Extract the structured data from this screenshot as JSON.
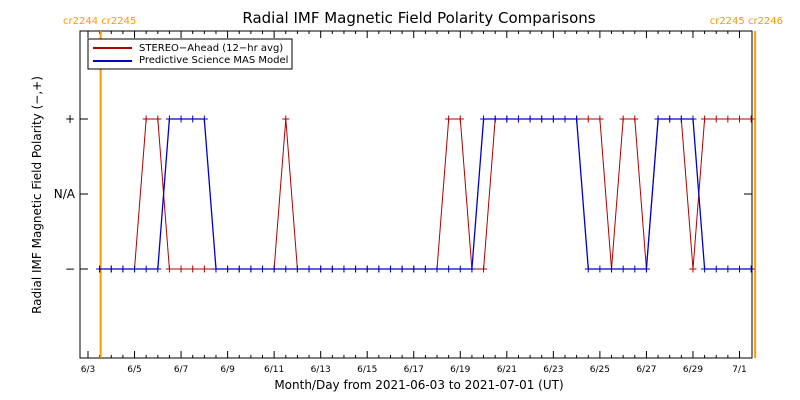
{
  "colors": {
    "stereo": "#b00000",
    "mas": "#0000cc",
    "cr_line": "#ff9900",
    "axis": "#000000"
  },
  "chart_data": {
    "type": "line",
    "title": "Radial IMF Magnetic Field Polarity Comparisons",
    "xlabel": "Month/Day from 2021-06-03 to 2021-07-01 (UT)",
    "ylabel": "Radial IMF Magnetic Field Polarity (−,+)",
    "xlim": [
      "2021-06-03",
      "2021-07-01"
    ],
    "ylim": [
      -2,
      2
    ],
    "x_tick_labels": [
      "6/3",
      "6/5",
      "6/7",
      "6/9",
      "6/11",
      "6/13",
      "6/15",
      "6/17",
      "6/19",
      "6/21",
      "6/23",
      "6/25",
      "6/27",
      "6/29",
      "7/1"
    ],
    "y_ticks": [
      {
        "value": 1,
        "label": "+"
      },
      {
        "value": 0,
        "label": "N/A"
      },
      {
        "value": -1,
        "label": "−"
      }
    ],
    "legend_placement": "top-left",
    "carrington_markers": [
      {
        "x": "2021-06-03 12:00",
        "label": "cr2244 cr2245",
        "placement": "top-left"
      },
      {
        "x": "2021-07-01 12:00",
        "label": "cr2245 cr2246",
        "placement": "top-right"
      }
    ],
    "series": [
      {
        "name": "STEREO−Ahead (12−hr avg)",
        "color": "#b00000",
        "marker": "plus",
        "points": [
          [
            "2021-06-03 12:00",
            -1
          ],
          [
            "2021-06-04 00:00",
            -1
          ],
          [
            "2021-06-04 12:00",
            -1
          ],
          [
            "2021-06-05 00:00",
            -1
          ],
          [
            "2021-06-05 12:00",
            1
          ],
          [
            "2021-06-06 00:00",
            1
          ],
          [
            "2021-06-06 12:00",
            -1
          ],
          [
            "2021-06-07 00:00",
            -1
          ],
          [
            "2021-06-07 12:00",
            -1
          ],
          [
            "2021-06-08 00:00",
            -1
          ],
          [
            "2021-06-08 12:00",
            -1
          ],
          [
            "2021-06-09 00:00",
            -1
          ],
          [
            "2021-06-09 12:00",
            -1
          ],
          [
            "2021-06-10 00:00",
            -1
          ],
          [
            "2021-06-10 12:00",
            -1
          ],
          [
            "2021-06-11 00:00",
            -1
          ],
          [
            "2021-06-11 12:00",
            1
          ],
          [
            "2021-06-12 00:00",
            -1
          ],
          [
            "2021-06-12 12:00",
            -1
          ],
          [
            "2021-06-13 00:00",
            -1
          ],
          [
            "2021-06-13 12:00",
            -1
          ],
          [
            "2021-06-14 00:00",
            -1
          ],
          [
            "2021-06-14 12:00",
            -1
          ],
          [
            "2021-06-15 00:00",
            -1
          ],
          [
            "2021-06-15 12:00",
            -1
          ],
          [
            "2021-06-16 00:00",
            -1
          ],
          [
            "2021-06-16 12:00",
            -1
          ],
          [
            "2021-06-17 00:00",
            -1
          ],
          [
            "2021-06-17 12:00",
            -1
          ],
          [
            "2021-06-18 00:00",
            -1
          ],
          [
            "2021-06-18 12:00",
            1
          ],
          [
            "2021-06-19 00:00",
            1
          ],
          [
            "2021-06-19 12:00",
            -1
          ],
          [
            "2021-06-20 00:00",
            -1
          ],
          [
            "2021-06-20 12:00",
            1
          ],
          [
            "2021-06-21 00:00",
            1
          ],
          [
            "2021-06-21 12:00",
            1
          ],
          [
            "2021-06-22 00:00",
            1
          ],
          [
            "2021-06-22 12:00",
            1
          ],
          [
            "2021-06-23 00:00",
            1
          ],
          [
            "2021-06-23 12:00",
            1
          ],
          [
            "2021-06-24 00:00",
            1
          ],
          [
            "2021-06-24 12:00",
            1
          ],
          [
            "2021-06-25 00:00",
            1
          ],
          [
            "2021-06-25 12:00",
            -1
          ],
          [
            "2021-06-26 00:00",
            1
          ],
          [
            "2021-06-26 12:00",
            1
          ],
          [
            "2021-06-27 00:00",
            -1
          ],
          [
            "2021-06-27 12:00",
            1
          ],
          [
            "2021-06-28 00:00",
            1
          ],
          [
            "2021-06-28 12:00",
            1
          ],
          [
            "2021-06-29 00:00",
            -1
          ],
          [
            "2021-06-29 12:00",
            1
          ],
          [
            "2021-06-30 00:00",
            1
          ],
          [
            "2021-06-30 12:00",
            1
          ],
          [
            "2021-07-01 00:00",
            1
          ],
          [
            "2021-07-01 12:00",
            1
          ]
        ]
      },
      {
        "name": "Predictive Science MAS Model",
        "color": "#0000cc",
        "marker": "plus",
        "points": [
          [
            "2021-06-03 12:00",
            -1
          ],
          [
            "2021-06-04 00:00",
            -1
          ],
          [
            "2021-06-04 12:00",
            -1
          ],
          [
            "2021-06-05 00:00",
            -1
          ],
          [
            "2021-06-05 12:00",
            -1
          ],
          [
            "2021-06-06 00:00",
            -1
          ],
          [
            "2021-06-06 12:00",
            1
          ],
          [
            "2021-06-07 00:00",
            1
          ],
          [
            "2021-06-07 12:00",
            1
          ],
          [
            "2021-06-08 00:00",
            1
          ],
          [
            "2021-06-08 12:00",
            -1
          ],
          [
            "2021-06-09 00:00",
            -1
          ],
          [
            "2021-06-09 12:00",
            -1
          ],
          [
            "2021-06-10 00:00",
            -1
          ],
          [
            "2021-06-10 12:00",
            -1
          ],
          [
            "2021-06-11 00:00",
            -1
          ],
          [
            "2021-06-11 12:00",
            -1
          ],
          [
            "2021-06-12 00:00",
            -1
          ],
          [
            "2021-06-12 12:00",
            -1
          ],
          [
            "2021-06-13 00:00",
            -1
          ],
          [
            "2021-06-13 12:00",
            -1
          ],
          [
            "2021-06-14 00:00",
            -1
          ],
          [
            "2021-06-14 12:00",
            -1
          ],
          [
            "2021-06-15 00:00",
            -1
          ],
          [
            "2021-06-15 12:00",
            -1
          ],
          [
            "2021-06-16 00:00",
            -1
          ],
          [
            "2021-06-16 12:00",
            -1
          ],
          [
            "2021-06-17 00:00",
            -1
          ],
          [
            "2021-06-17 12:00",
            -1
          ],
          [
            "2021-06-18 00:00",
            -1
          ],
          [
            "2021-06-18 12:00",
            -1
          ],
          [
            "2021-06-19 00:00",
            -1
          ],
          [
            "2021-06-19 12:00",
            -1
          ],
          [
            "2021-06-20 00:00",
            1
          ],
          [
            "2021-06-20 12:00",
            1
          ],
          [
            "2021-06-21 00:00",
            1
          ],
          [
            "2021-06-21 12:00",
            1
          ],
          [
            "2021-06-22 00:00",
            1
          ],
          [
            "2021-06-22 12:00",
            1
          ],
          [
            "2021-06-23 00:00",
            1
          ],
          [
            "2021-06-23 12:00",
            1
          ],
          [
            "2021-06-24 00:00",
            1
          ],
          [
            "2021-06-24 12:00",
            -1
          ],
          [
            "2021-06-25 00:00",
            -1
          ],
          [
            "2021-06-25 12:00",
            -1
          ],
          [
            "2021-06-26 00:00",
            -1
          ],
          [
            "2021-06-26 12:00",
            -1
          ],
          [
            "2021-06-27 00:00",
            -1
          ],
          [
            "2021-06-27 12:00",
            1
          ],
          [
            "2021-06-28 00:00",
            1
          ],
          [
            "2021-06-28 12:00",
            1
          ],
          [
            "2021-06-29 00:00",
            1
          ],
          [
            "2021-06-29 12:00",
            -1
          ],
          [
            "2021-06-30 00:00",
            -1
          ],
          [
            "2021-06-30 12:00",
            -1
          ],
          [
            "2021-07-01 00:00",
            -1
          ],
          [
            "2021-07-01 12:00",
            -1
          ]
        ]
      }
    ]
  }
}
